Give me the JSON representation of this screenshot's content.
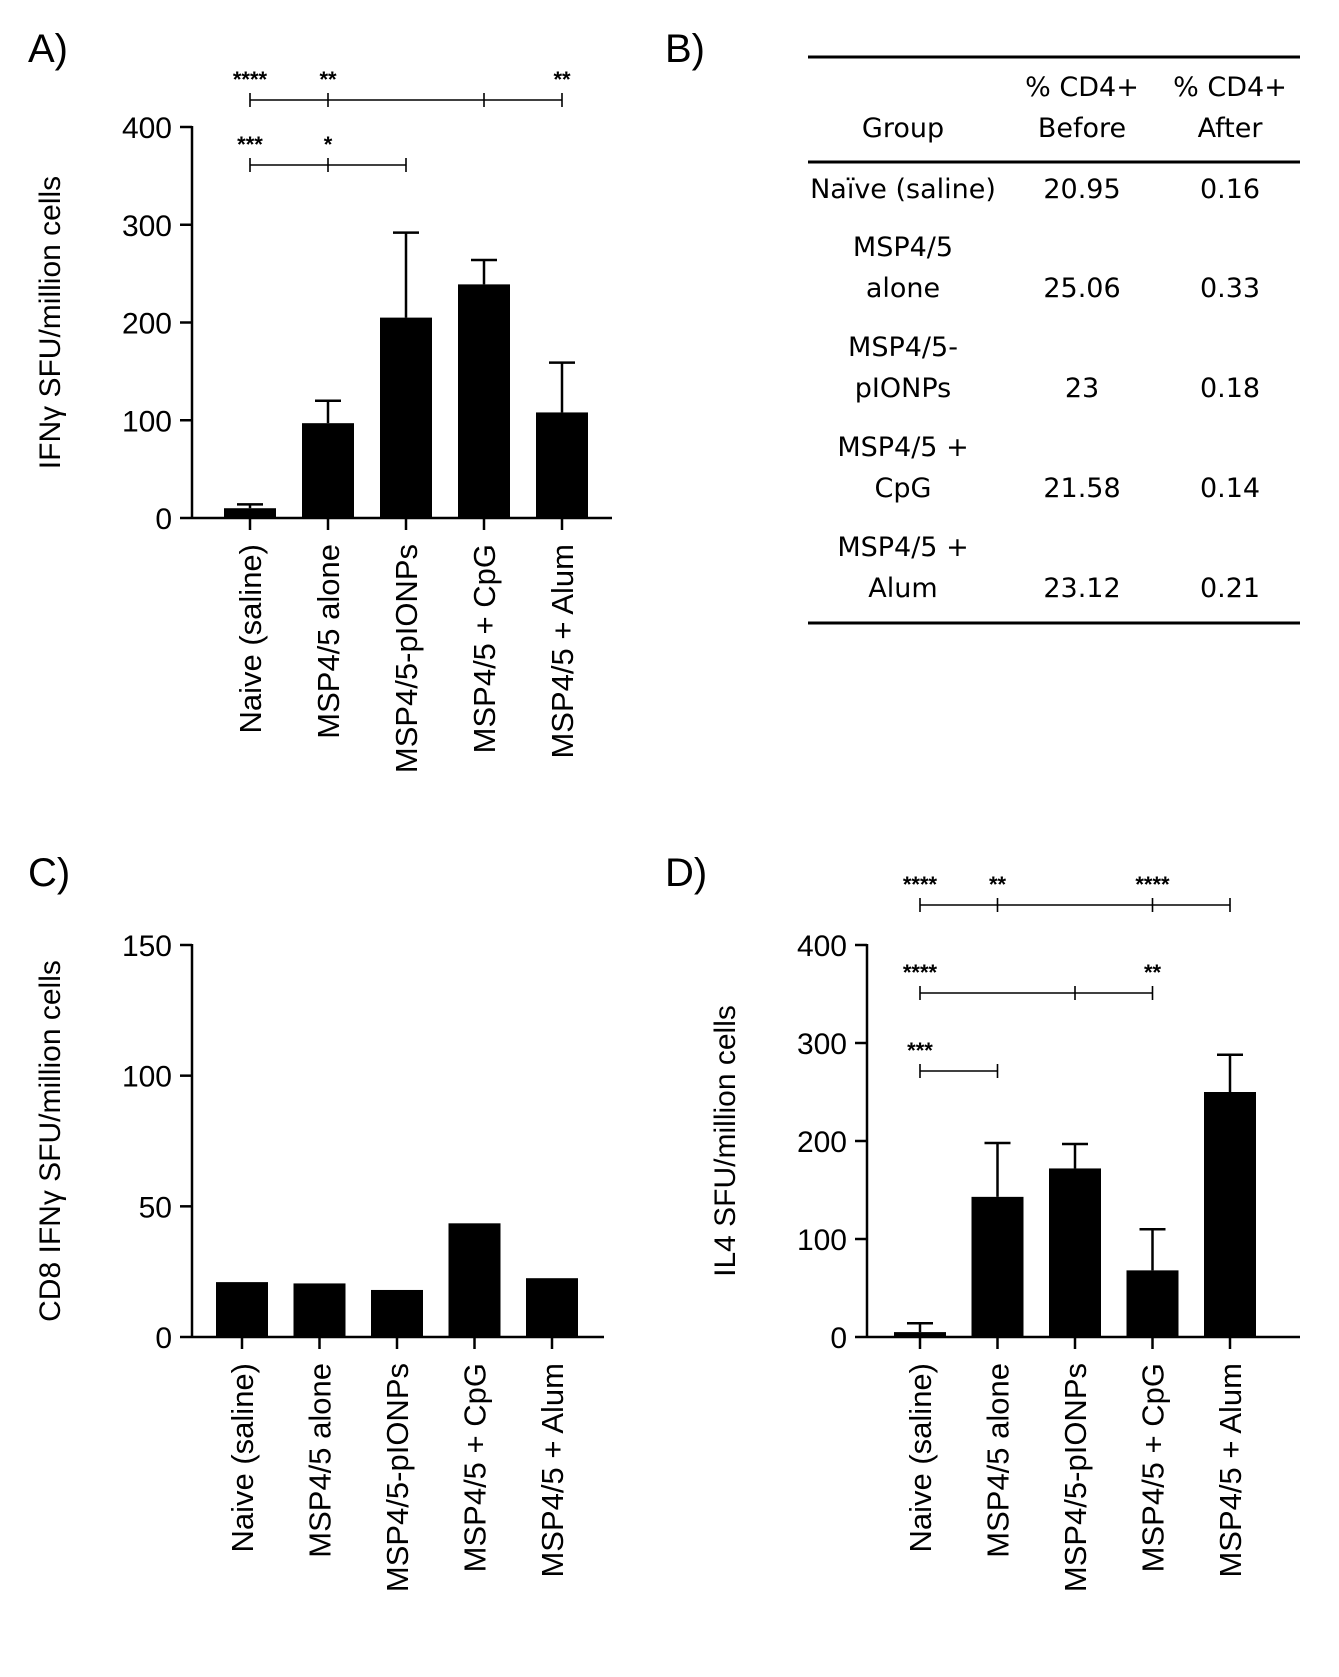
{
  "panels": {
    "a": {
      "letter": "A)"
    },
    "b": {
      "letter": "B)"
    },
    "c": {
      "letter": "C)"
    },
    "d": {
      "letter": "D)"
    }
  },
  "chart_data": [
    {
      "id": "A",
      "type": "bar",
      "categories": [
        "Naive (saline)",
        "MSP4/5 alone",
        "MSP4/5-pIONPs",
        "MSP4/5 + CpG",
        "MSP4/5 + Alum"
      ],
      "values": [
        10,
        97,
        205,
        239,
        108
      ],
      "errors": [
        4,
        23,
        87,
        25,
        51
      ],
      "xlabel": "",
      "ylabel": "IFNγ SFU/million cells",
      "ylim": [
        0,
        400
      ],
      "yticks": [
        0,
        100,
        200,
        300,
        400
      ],
      "significance": [
        {
          "from": 0,
          "ticks": [
            1,
            3,
            4
          ],
          "labels": [
            {
              "at": 0,
              "text": "****"
            },
            {
              "at": 1,
              "text": "**"
            },
            {
              "at": 4,
              "text": "**"
            }
          ]
        },
        {
          "from": 0,
          "ticks": [
            1,
            2
          ],
          "labels": [
            {
              "at": 0,
              "text": "***"
            },
            {
              "at": 1,
              "text": "*"
            }
          ]
        }
      ]
    },
    {
      "id": "C",
      "type": "bar",
      "categories": [
        "Naive (saline)",
        "MSP4/5 alone",
        "MSP4/5-pIONPs",
        "MSP4/5 + CpG",
        "MSP4/5 + Alum"
      ],
      "values": [
        21,
        20.5,
        18,
        43.5,
        22.5
      ],
      "errors": [
        0,
        0,
        0,
        0,
        0
      ],
      "xlabel": "",
      "ylabel": "CD8 IFNγ SFU/million cells",
      "ylim": [
        0,
        150
      ],
      "yticks": [
        0,
        50,
        100,
        150
      ],
      "significance": []
    },
    {
      "id": "D",
      "type": "bar",
      "categories": [
        "Naive (saline)",
        "MSP4/5 alone",
        "MSP4/5-pIONPs",
        "MSP4/5 + CpG",
        "MSP4/5 + Alum"
      ],
      "values": [
        5,
        143,
        172,
        68,
        250
      ],
      "errors": [
        9,
        55,
        25,
        42,
        38
      ],
      "xlabel": "",
      "ylabel": "IL4 SFU/million cells",
      "ylim": [
        0,
        400
      ],
      "yticks": [
        0,
        100,
        200,
        300,
        400
      ],
      "significance": [
        {
          "from": 0,
          "ticks": [
            1,
            3,
            4
          ],
          "labels": [
            {
              "at": 0,
              "text": "****"
            },
            {
              "at": 1,
              "text": "**"
            },
            {
              "at": 3,
              "text": "****"
            }
          ]
        },
        {
          "from": 0,
          "ticks": [
            2,
            3
          ],
          "labels": [
            {
              "at": 0,
              "text": "****"
            },
            {
              "at": 3,
              "text": "**"
            }
          ]
        },
        {
          "from": 0,
          "ticks": [
            1
          ],
          "labels": [
            {
              "at": 0,
              "text": "***"
            }
          ]
        }
      ]
    }
  ],
  "table": {
    "type": "table",
    "headers": [
      {
        "lines": [
          "Group"
        ]
      },
      {
        "lines": [
          "% CD4+",
          "Before"
        ]
      },
      {
        "lines": [
          "% CD4+",
          "After"
        ]
      }
    ],
    "rows": [
      {
        "group": [
          "Naïve (saline)"
        ],
        "before": "20.95",
        "after": "0.16"
      },
      {
        "group": [
          "MSP4/5",
          "alone"
        ],
        "before": "25.06",
        "after": "0.33"
      },
      {
        "group": [
          "MSP4/5-",
          "pIONPs"
        ],
        "before": "23",
        "after": "0.18"
      },
      {
        "group": [
          "MSP4/5 +",
          "CpG"
        ],
        "before": "21.58",
        "after": "0.14"
      },
      {
        "group": [
          "MSP4/5 +",
          "Alum"
        ],
        "before": "23.12",
        "after": "0.21"
      }
    ]
  }
}
